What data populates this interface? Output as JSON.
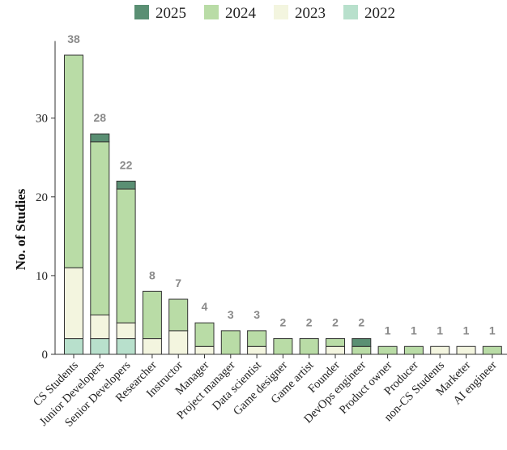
{
  "chart_data": {
    "type": "bar",
    "stacked": true,
    "title": "",
    "xlabel": "",
    "ylabel": "No. of Studies",
    "ylim": [
      0,
      40
    ],
    "yticks": [
      0,
      10,
      20,
      30
    ],
    "grid": false,
    "legend_position": "top",
    "legend_order": [
      "2025",
      "2024",
      "2023",
      "2022"
    ],
    "categories": [
      "CS Students",
      "Junior Developers",
      "Senior Developers",
      "Researcher",
      "Instructor",
      "Manager",
      "Project manager",
      "Data scientist",
      "Game designer",
      "Game artist",
      "Founder",
      "DevOps engineer",
      "Product owner",
      "Producer",
      "non-CS Students",
      "Marketer",
      "AI engineer"
    ],
    "series": [
      {
        "name": "2022",
        "color": "#b8e0cc",
        "values": [
          2,
          2,
          2,
          0,
          0,
          0,
          0,
          0,
          0,
          0,
          0,
          0,
          0,
          0,
          0,
          0,
          0
        ]
      },
      {
        "name": "2023",
        "color": "#f3f5df",
        "values": [
          9,
          3,
          2,
          2,
          3,
          1,
          0,
          1,
          0,
          0,
          1,
          0,
          0,
          0,
          1,
          1,
          0
        ]
      },
      {
        "name": "2024",
        "color": "#b9dca6",
        "values": [
          27,
          22,
          17,
          6,
          4,
          3,
          3,
          2,
          2,
          2,
          1,
          1,
          1,
          1,
          0,
          0,
          1
        ]
      },
      {
        "name": "2025",
        "color": "#5a8f73",
        "values": [
          0,
          1,
          1,
          0,
          0,
          0,
          0,
          0,
          0,
          0,
          0,
          1,
          0,
          0,
          0,
          0,
          0
        ]
      }
    ],
    "totals": [
      "38",
      "28",
      "22",
      "8",
      "7",
      "4",
      "3",
      "3",
      "2",
      "2",
      "2",
      "2",
      "1",
      "1",
      "1",
      "1",
      "1"
    ]
  }
}
